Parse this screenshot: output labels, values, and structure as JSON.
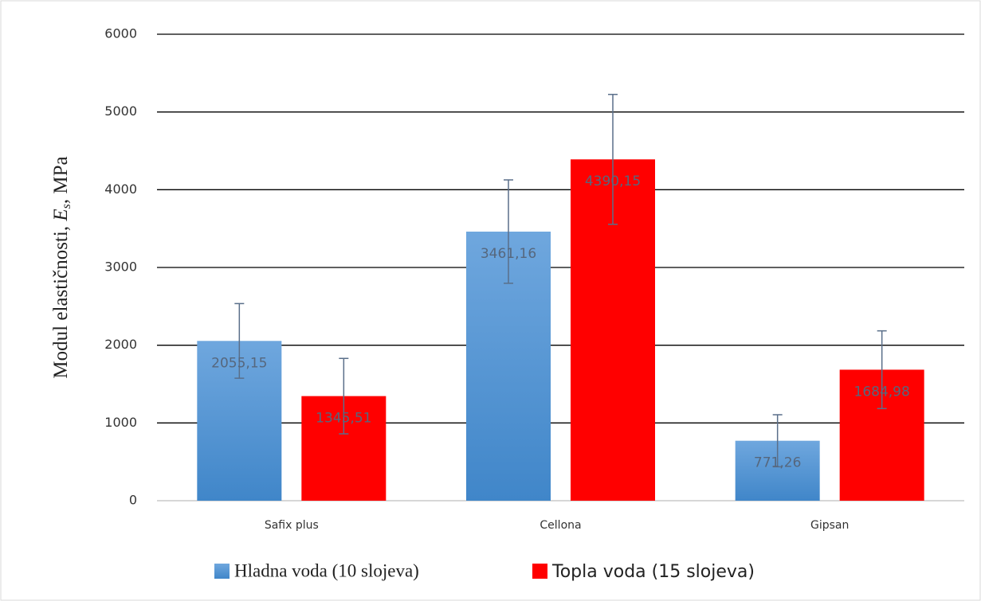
{
  "chart_data": {
    "type": "bar",
    "y_label_parts": [
      "Modul elastičnosti, ",
      "E",
      "s",
      ", MPa"
    ],
    "categories": [
      "Safix plus",
      "Cellona",
      "Gipsan"
    ],
    "series": [
      {
        "name": "Hladna voda (10 slojeva)",
        "color": "#5b9bd5",
        "values": [
          2055.15,
          3461.16,
          771.26
        ],
        "value_labels": [
          "2055,15",
          "3461,16",
          "771,26"
        ],
        "errors": [
          480,
          665,
          335
        ]
      },
      {
        "name": "Topla voda (15 slojeva)",
        "color": "#ff0000",
        "values": [
          1345.51,
          4390.15,
          1684.98
        ],
        "value_labels": [
          "1345,51",
          "4390,15",
          "1684,98"
        ],
        "errors": [
          485,
          835,
          500
        ]
      }
    ],
    "error_color": "#5a6f8a",
    "ylim": [
      0,
      6000
    ],
    "yticks": [
      0,
      1000,
      2000,
      3000,
      4000,
      5000,
      6000
    ],
    "grid": true,
    "legend": "bottom"
  }
}
